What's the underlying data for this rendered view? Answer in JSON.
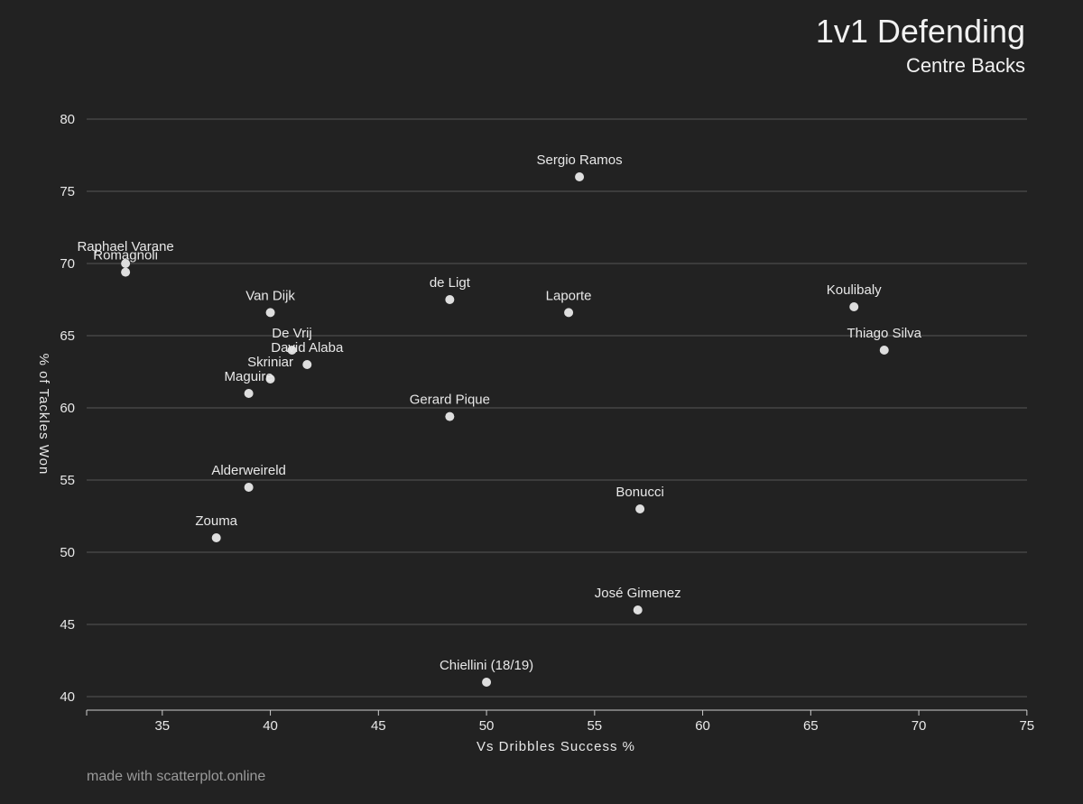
{
  "header": {
    "title": "1v1 Defending",
    "subtitle": "Centre Backs"
  },
  "footer": {
    "credit": "made with scatterplot.online"
  },
  "colors": {
    "background": "#222222",
    "grid": "#555555",
    "axis": "#cccccc",
    "point": "#dedede",
    "text": "#e8e8e8"
  },
  "chart_data": {
    "type": "scatter",
    "title": "1v1 Defending",
    "subtitle": "Centre Backs",
    "xlabel": "Vs Dribbles Success %",
    "ylabel": "% of Tackles Won",
    "xlim": [
      31.5,
      75
    ],
    "ylim": [
      39.5,
      82
    ],
    "xticks": [
      35,
      40,
      45,
      50,
      55,
      60,
      65,
      70,
      75
    ],
    "yticks": [
      40,
      45,
      50,
      55,
      60,
      65,
      70,
      75,
      80
    ],
    "grid": "horizontal",
    "points": [
      {
        "label": "Sergio Ramos",
        "x": 54.3,
        "y": 76.0
      },
      {
        "label": "Raphael Varane",
        "x": 33.3,
        "y": 70.0
      },
      {
        "label": "Romagnoli",
        "x": 33.3,
        "y": 69.4
      },
      {
        "label": "de Ligt",
        "x": 48.3,
        "y": 67.5
      },
      {
        "label": "Van Dijk",
        "x": 40.0,
        "y": 66.6
      },
      {
        "label": "Laporte",
        "x": 53.8,
        "y": 66.6
      },
      {
        "label": "Koulibaly",
        "x": 67.0,
        "y": 67.0
      },
      {
        "label": "Thiago Silva",
        "x": 68.4,
        "y": 64.0
      },
      {
        "label": "De Vrij",
        "x": 41.0,
        "y": 64.0
      },
      {
        "label": "David Alaba",
        "x": 41.7,
        "y": 63.0
      },
      {
        "label": "Skriniar",
        "x": 40.0,
        "y": 62.0
      },
      {
        "label": "Maguire",
        "x": 39.0,
        "y": 61.0
      },
      {
        "label": "Gerard Pique",
        "x": 48.3,
        "y": 59.4
      },
      {
        "label": "Alderweireld",
        "x": 39.0,
        "y": 54.5
      },
      {
        "label": "Bonucci",
        "x": 57.1,
        "y": 53.0
      },
      {
        "label": "Zouma",
        "x": 37.5,
        "y": 51.0
      },
      {
        "label": "José Gimenez",
        "x": 57.0,
        "y": 46.0
      },
      {
        "label": "Chiellini (18/19)",
        "x": 50.0,
        "y": 41.0
      }
    ]
  }
}
